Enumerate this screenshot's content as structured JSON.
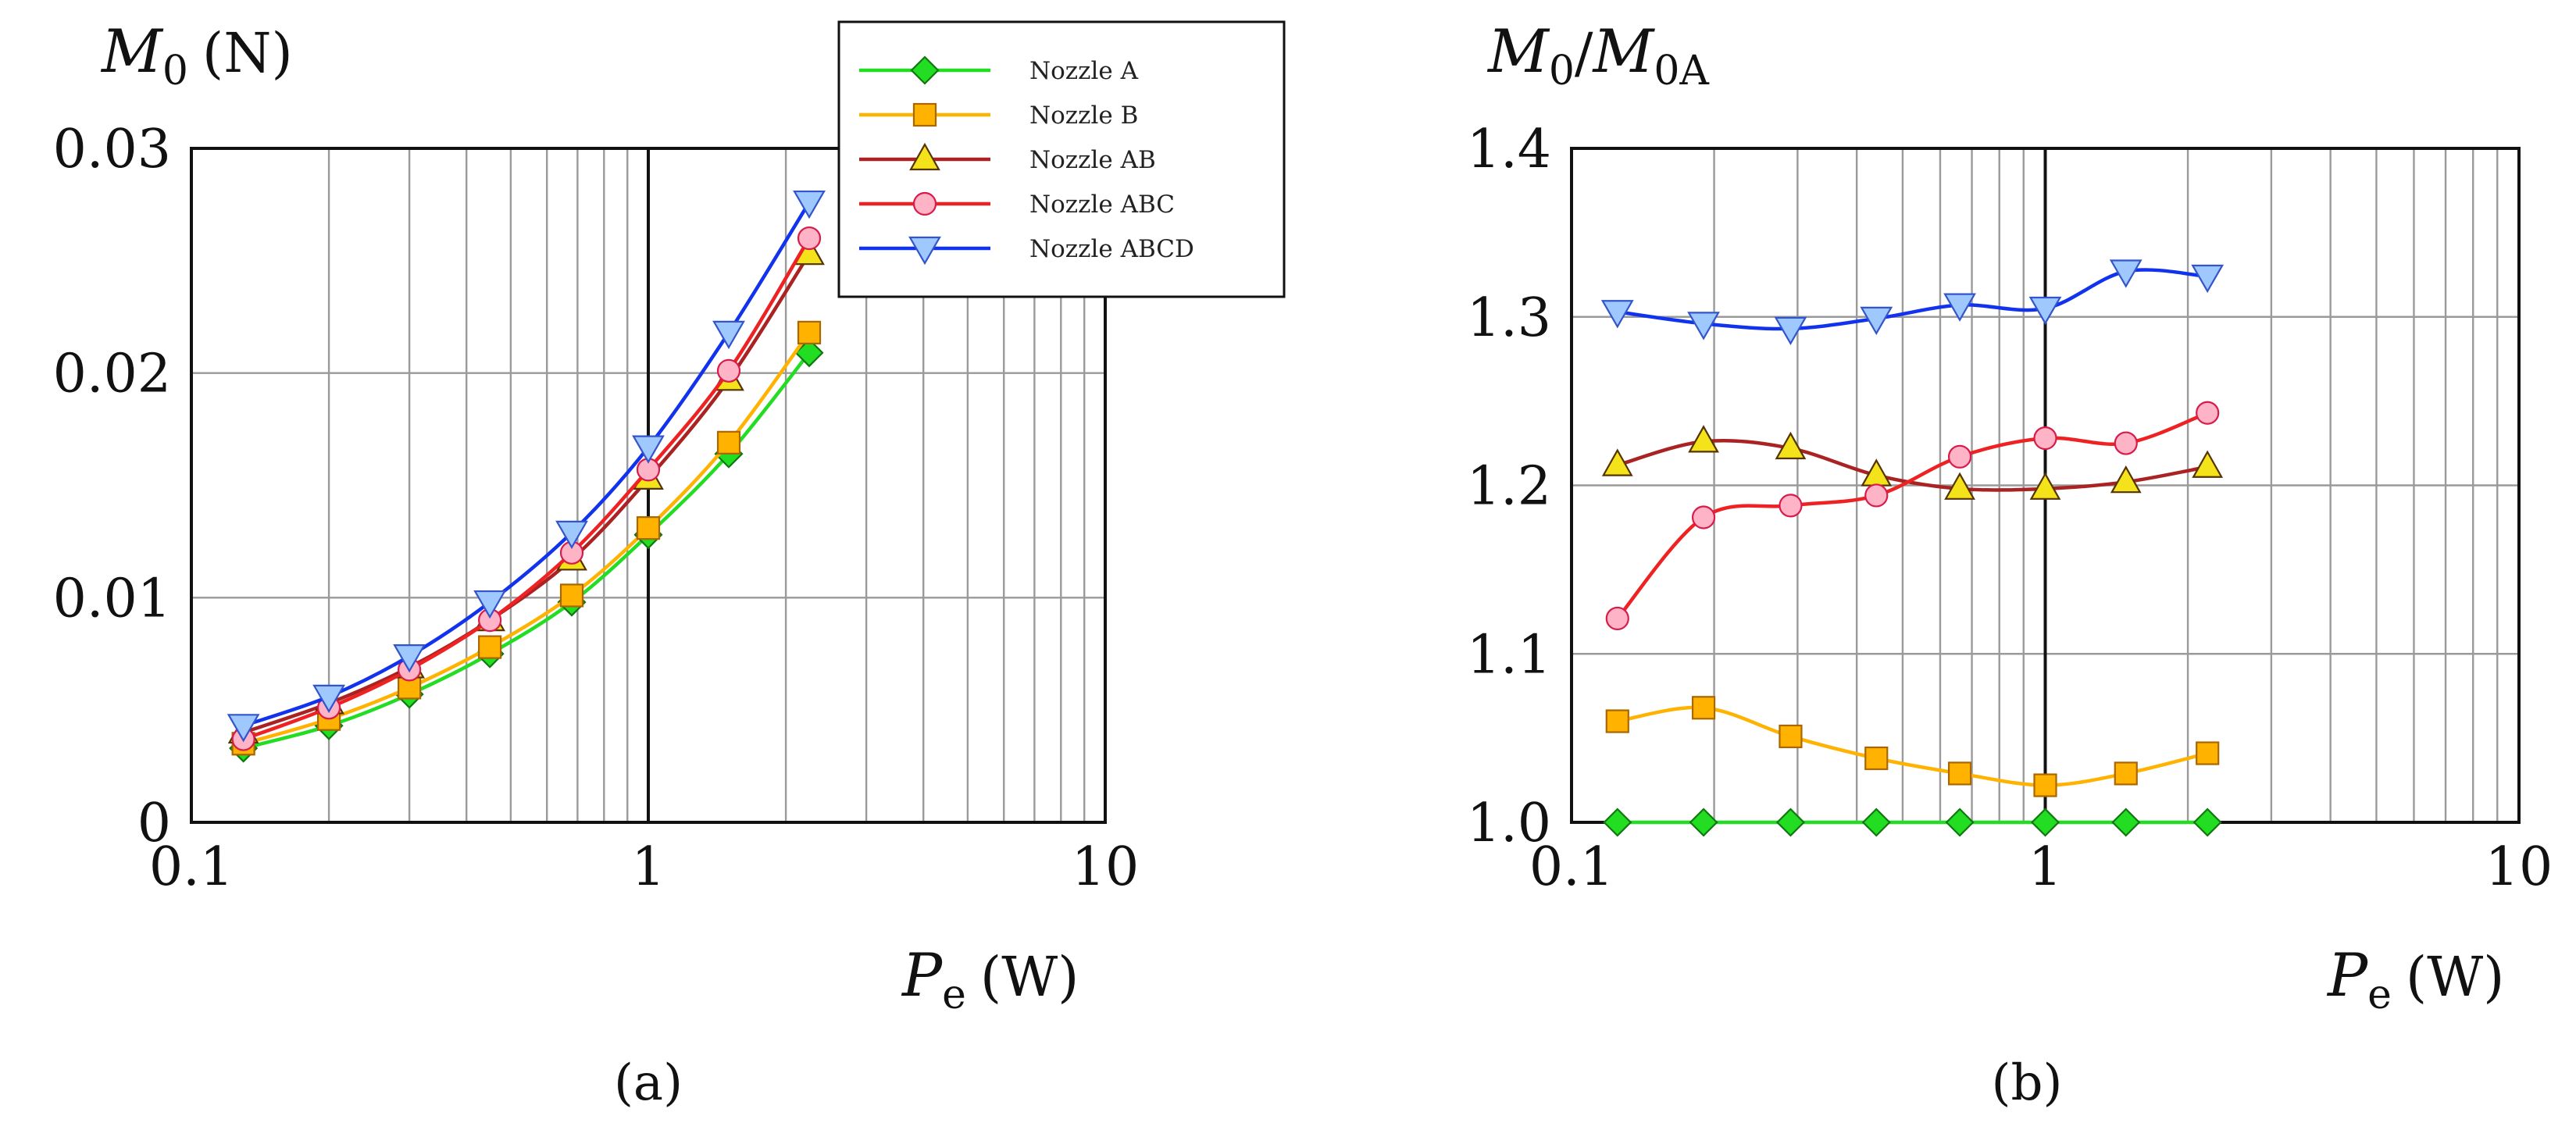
{
  "chart_data": [
    {
      "type": "line",
      "panel_label": "(a)",
      "xscale": "log",
      "xlim": [
        0.1,
        10
      ],
      "ylim": [
        0,
        0.03
      ],
      "xticks": [
        0.1,
        1,
        10
      ],
      "xtick_labels": [
        "0.1",
        "1",
        "10"
      ],
      "yticks": [
        0,
        0.01,
        0.02,
        0.03
      ],
      "ytick_labels": [
        "0",
        "0.01",
        "0.02",
        "0.03"
      ],
      "ylabel_symbol": "M",
      "ylabel_sub": "0",
      "ylabel_unit": "(N)",
      "xlabel_symbol": "P",
      "xlabel_sub": "e",
      "xlabel_unit": "(W)",
      "grid": true,
      "legend": {
        "placement": "top-right",
        "entries": [
          "Nozzle A",
          "Nozzle B",
          "Nozzle AB",
          "Nozzle ABC",
          "Nozzle ABCD"
        ]
      },
      "series": [
        {
          "name": "Nozzle A",
          "color": "#22dd22",
          "marker": "diamond",
          "x": [
            0.13,
            0.2,
            0.3,
            0.45,
            0.68,
            1.0,
            1.5,
            2.25
          ],
          "y": [
            0.0033,
            0.0043,
            0.0057,
            0.0075,
            0.0098,
            0.0128,
            0.0164,
            0.0209
          ]
        },
        {
          "name": "Nozzle B",
          "color": "#ffb300",
          "marker": "square",
          "x": [
            0.13,
            0.2,
            0.3,
            0.45,
            0.68,
            1.0,
            1.5,
            2.25
          ],
          "y": [
            0.0035,
            0.0046,
            0.006,
            0.0078,
            0.0101,
            0.0131,
            0.0169,
            0.0218
          ]
        },
        {
          "name": "Nozzle AB",
          "color": "#aa2222",
          "marker": "triangle-up",
          "x": [
            0.13,
            0.2,
            0.3,
            0.45,
            0.68,
            1.0,
            1.5,
            2.25
          ],
          "y": [
            0.004,
            0.0053,
            0.0069,
            0.009,
            0.0117,
            0.0153,
            0.0197,
            0.0253
          ]
        },
        {
          "name": "Nozzle ABC",
          "color": "#ee2222",
          "marker": "circle",
          "x": [
            0.13,
            0.2,
            0.3,
            0.45,
            0.68,
            1.0,
            1.5,
            2.25
          ],
          "y": [
            0.0037,
            0.0051,
            0.0068,
            0.009,
            0.012,
            0.0157,
            0.0201,
            0.026
          ]
        },
        {
          "name": "Nozzle ABCD",
          "color": "#1133ee",
          "marker": "triangle-down",
          "x": [
            0.13,
            0.2,
            0.3,
            0.45,
            0.68,
            1.0,
            1.5,
            2.25
          ],
          "y": [
            0.0043,
            0.0056,
            0.0074,
            0.0098,
            0.0129,
            0.0167,
            0.0218,
            0.0276
          ]
        }
      ]
    },
    {
      "type": "line",
      "panel_label": "(b)",
      "xscale": "log",
      "xlim": [
        0.1,
        10
      ],
      "ylim": [
        1.0,
        1.4
      ],
      "xticks": [
        0.1,
        1,
        10
      ],
      "xtick_labels": [
        "0.1",
        "1",
        "10"
      ],
      "yticks": [
        1.0,
        1.1,
        1.2,
        1.3,
        1.4
      ],
      "ytick_labels": [
        "1.0",
        "1.1",
        "1.2",
        "1.3",
        "1.4"
      ],
      "ylabel_symbol": "M",
      "ylabel_sub": "0",
      "ylabel_slash": "/",
      "ylabel_symbol2": "M",
      "ylabel_sub2": "0A",
      "xlabel_symbol": "P",
      "xlabel_sub": "e",
      "xlabel_unit": "(W)",
      "grid": true,
      "series": [
        {
          "name": "Nozzle A",
          "color": "#22dd22",
          "marker": "diamond",
          "x": [
            0.125,
            0.19,
            0.29,
            0.44,
            0.66,
            1.0,
            1.48,
            2.2
          ],
          "y": [
            1.0,
            1.0,
            1.0,
            1.0,
            1.0,
            1.0,
            1.0,
            1.0
          ]
        },
        {
          "name": "Nozzle B",
          "color": "#ffb300",
          "marker": "square",
          "x": [
            0.125,
            0.19,
            0.29,
            0.44,
            0.66,
            1.0,
            1.48,
            2.2
          ],
          "y": [
            1.06,
            1.068,
            1.051,
            1.038,
            1.029,
            1.022,
            1.029,
            1.041
          ]
        },
        {
          "name": "Nozzle AB",
          "color": "#aa2222",
          "marker": "triangle-up",
          "x": [
            0.125,
            0.19,
            0.29,
            0.44,
            0.66,
            1.0,
            1.48,
            2.2
          ],
          "y": [
            1.212,
            1.226,
            1.222,
            1.206,
            1.198,
            1.198,
            1.202,
            1.211
          ]
        },
        {
          "name": "Nozzle ABC",
          "color": "#ee2222",
          "marker": "circle",
          "x": [
            0.125,
            0.19,
            0.29,
            0.44,
            0.66,
            1.0,
            1.48,
            2.2
          ],
          "y": [
            1.121,
            1.181,
            1.188,
            1.194,
            1.217,
            1.228,
            1.225,
            1.243
          ]
        },
        {
          "name": "Nozzle ABCD",
          "color": "#1133ee",
          "marker": "triangle-down",
          "x": [
            0.125,
            0.19,
            0.29,
            0.44,
            0.66,
            1.0,
            1.48,
            2.2
          ],
          "y": [
            1.303,
            1.296,
            1.293,
            1.299,
            1.307,
            1.305,
            1.327,
            1.324
          ]
        }
      ]
    }
  ]
}
